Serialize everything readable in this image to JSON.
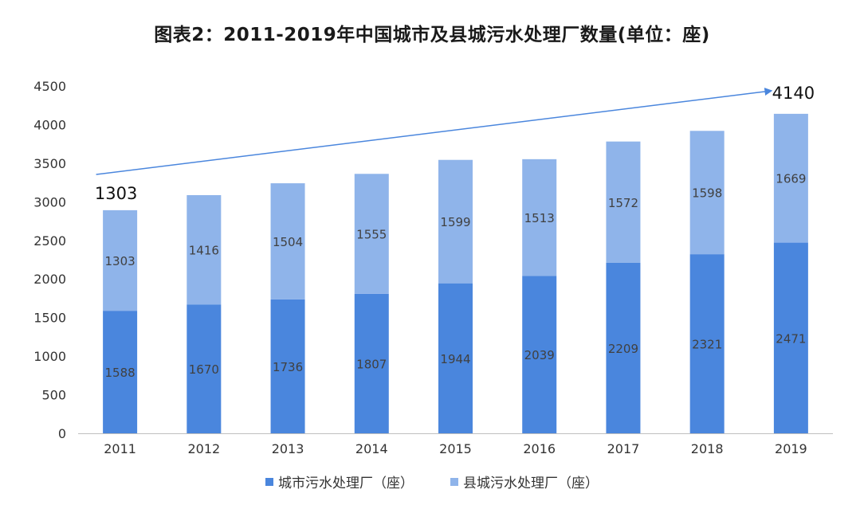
{
  "title": "图表2：2011-2019年中国城市及县城污水处理厂数量(单位：座)",
  "chart_data": {
    "type": "bar",
    "stacked": true,
    "categories": [
      "2011",
      "2012",
      "2013",
      "2014",
      "2015",
      "2016",
      "2017",
      "2018",
      "2019"
    ],
    "series": [
      {
        "name": "城市污水处理厂（座）",
        "color": "#4a86dd",
        "values": [
          1588,
          1670,
          1736,
          1807,
          1944,
          2039,
          2209,
          2321,
          2471
        ]
      },
      {
        "name": "县城污水处理厂（座）",
        "color": "#8fb4ea",
        "values": [
          1303,
          1416,
          1504,
          1555,
          1599,
          1513,
          1572,
          1598,
          1669
        ]
      }
    ],
    "ylim": [
      0,
      4500
    ],
    "yticks": [
      0,
      500,
      1000,
      1500,
      2000,
      2500,
      3000,
      3500,
      4000,
      4500
    ],
    "grid": false,
    "legend_position": "bottom",
    "annotations": {
      "start_label": "1303",
      "end_label": "4140",
      "arrow_color": "#4a86dd"
    }
  }
}
